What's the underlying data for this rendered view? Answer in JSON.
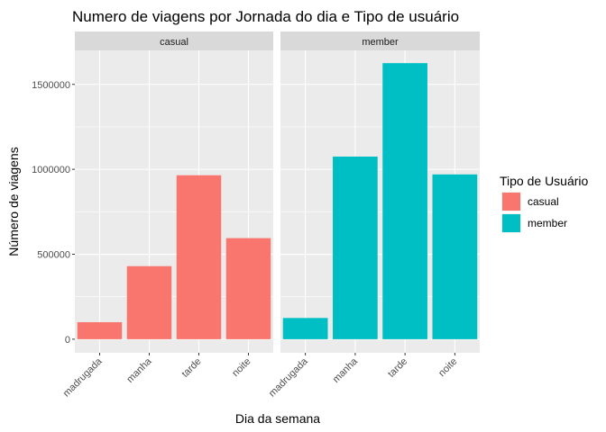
{
  "chart_data": {
    "type": "bar",
    "title": "Numero de viagens por Jornada do dia e Tipo de usuário",
    "xlabel": "Dia da semana",
    "ylabel": "Número de viagens",
    "categories": [
      "madrugada",
      "manha",
      "tarde",
      "noite"
    ],
    "yticks": [
      0,
      500000,
      1000000,
      1500000
    ],
    "ytick_labels": [
      "0",
      "500000",
      "1000000",
      "1500000"
    ],
    "ylim": [
      -80000,
      1700000
    ],
    "grid": true,
    "legend": {
      "title": "Tipo de Usuário",
      "placement": "right",
      "entries": [
        "casual",
        "member"
      ]
    },
    "colors": {
      "casual": "#F8766D",
      "member": "#00BFC4"
    },
    "panels": [
      {
        "name": "casual",
        "series": "casual",
        "values": [
          100000,
          430000,
          965000,
          595000
        ]
      },
      {
        "name": "member",
        "series": "member",
        "values": [
          125000,
          1075000,
          1625000,
          970000
        ]
      }
    ]
  }
}
